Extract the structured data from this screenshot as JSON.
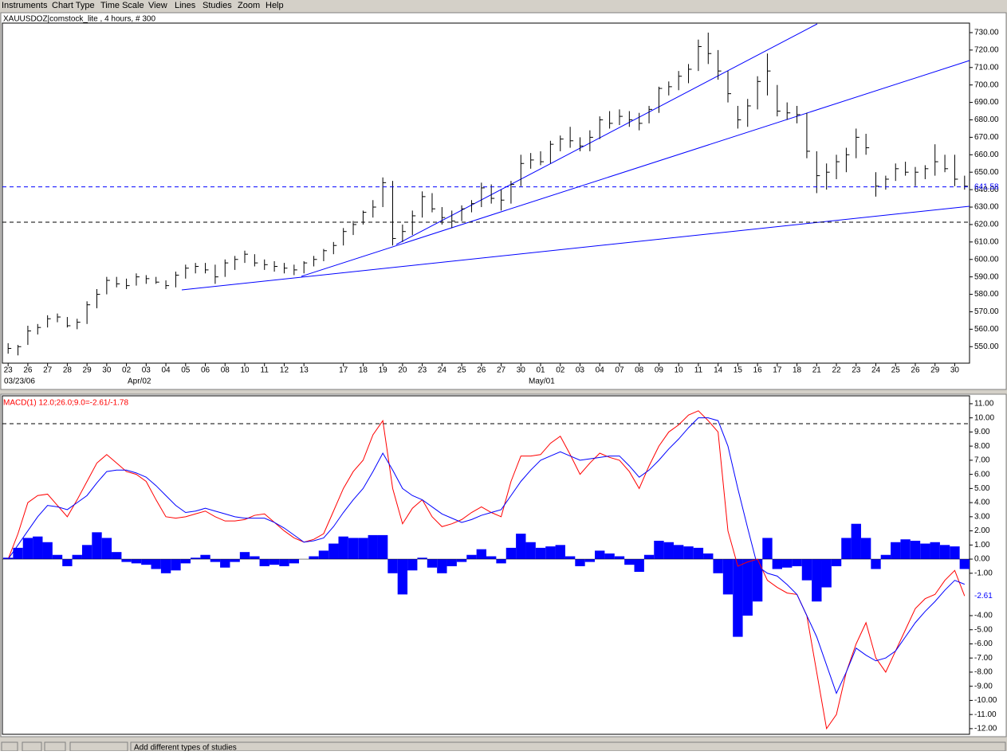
{
  "menu": [
    "Instruments",
    "Chart Type",
    "Time Scale",
    "View",
    "Lines",
    "Studies",
    "Zoom",
    "Help"
  ],
  "status_bar": "Add different types of studies",
  "chart_data": [
    {
      "type": "ohlc",
      "title": "XAUUSDOZ|comstock_lite , 4 hours, # 300",
      "color": "#000000",
      "categories": [
        "23",
        null,
        "26",
        null,
        "27",
        null,
        "28",
        null,
        "29",
        null,
        "30",
        null,
        "02",
        null,
        "03",
        null,
        "04",
        null,
        "05",
        null,
        "06",
        null,
        "08",
        null,
        "10",
        null,
        "11",
        null,
        "12",
        null,
        "13",
        null,
        null,
        null,
        "17",
        null,
        "18",
        null,
        "19",
        null,
        "20",
        null,
        "23",
        null,
        "24",
        null,
        "25",
        null,
        "26",
        null,
        "27",
        null,
        "30",
        null,
        "01",
        null,
        "02",
        null,
        "03",
        null,
        "04",
        null,
        "07",
        null,
        "08",
        null,
        "09",
        null,
        "10",
        null,
        "11",
        null,
        "14",
        null,
        "15",
        null,
        "16",
        null,
        "17",
        null,
        "18",
        null,
        "21",
        null,
        "22",
        null,
        "23",
        null,
        "24",
        null,
        "25",
        null,
        "26",
        null,
        "29",
        null,
        "30",
        null
      ],
      "period_labels": [
        "03/23/06",
        "Apr/02",
        "May/01"
      ],
      "high": [
        552,
        551,
        562,
        563,
        568,
        569,
        567,
        566,
        576,
        583,
        590,
        590,
        589,
        592,
        591,
        590,
        588,
        593,
        597,
        598,
        598,
        597,
        600,
        602,
        605,
        603,
        600,
        599,
        598,
        597,
        599,
        602,
        606,
        610,
        618,
        622,
        628,
        634,
        647,
        645,
        620,
        628,
        639,
        638,
        630,
        628,
        631,
        634,
        644,
        643,
        640,
        645,
        660,
        661,
        662,
        668,
        671,
        676,
        670,
        674,
        682,
        685,
        686,
        685,
        684,
        688,
        699,
        702,
        708,
        712,
        726,
        730,
        720,
        708,
        688,
        692,
        705,
        718,
        700,
        690,
        688,
        684,
        662,
        655,
        660,
        664,
        675,
        672,
        650,
        648,
        655,
        656,
        653,
        654,
        666,
        660,
        660,
        648
      ],
      "low": [
        546,
        545,
        551,
        557,
        561,
        564,
        561,
        560,
        563,
        572,
        580,
        584,
        583,
        585,
        586,
        586,
        583,
        584,
        589,
        592,
        592,
        586,
        590,
        594,
        598,
        596,
        594,
        593,
        592,
        591,
        592,
        596,
        599,
        603,
        608,
        614,
        620,
        624,
        630,
        608,
        610,
        614,
        624,
        627,
        620,
        618,
        622,
        627,
        630,
        632,
        628,
        632,
        642,
        652,
        654,
        655,
        662,
        664,
        662,
        662,
        669,
        675,
        677,
        676,
        674,
        678,
        684,
        694,
        697,
        701,
        708,
        712,
        703,
        690,
        675,
        676,
        686,
        694,
        682,
        680,
        678,
        658,
        638,
        640,
        646,
        650,
        658,
        660,
        636,
        640,
        645,
        648,
        642,
        646,
        648,
        650,
        642,
        640
      ],
      "close": [
        549,
        550,
        559,
        561,
        566,
        567,
        562,
        564,
        574,
        580,
        588,
        586,
        585,
        590,
        589,
        587,
        585,
        591,
        595,
        596,
        594,
        590,
        598,
        600,
        603,
        598,
        597,
        596,
        595,
        594,
        598,
        600,
        605,
        608,
        616,
        620,
        627,
        630,
        644,
        612,
        616,
        625,
        636,
        629,
        624,
        622,
        629,
        632,
        641,
        635,
        634,
        643,
        655,
        657,
        656,
        666,
        669,
        668,
        665,
        670,
        680,
        678,
        682,
        680,
        678,
        686,
        698,
        699,
        705,
        709,
        722,
        718,
        708,
        695,
        680,
        688,
        702,
        708,
        685,
        684,
        683,
        662,
        648,
        650,
        656,
        660,
        670,
        664,
        642,
        646,
        652,
        650,
        650,
        652,
        656,
        652,
        646,
        642
      ],
      "last_price": 641.58,
      "ylim": [
        541,
        735
      ],
      "yticks": [
        {
          "value": 550,
          "label": "550.00"
        },
        {
          "value": 560,
          "label": "560.00"
        },
        {
          "value": 570,
          "label": "570.00"
        },
        {
          "value": 580,
          "label": "580.00"
        },
        {
          "value": 590,
          "label": "590.00"
        },
        {
          "value": 600,
          "label": "600.00"
        },
        {
          "value": 610,
          "label": "610.00"
        },
        {
          "value": 620,
          "label": "620.00"
        },
        {
          "value": 630,
          "label": "630.00"
        },
        {
          "value": 640,
          "label": "640.00"
        },
        {
          "value": 650,
          "label": "650.00"
        },
        {
          "value": 660,
          "label": "660.00"
        },
        {
          "value": 670,
          "label": "670.00"
        },
        {
          "value": 680,
          "label": "680.00"
        },
        {
          "value": 690,
          "label": "690.00"
        },
        {
          "value": 700,
          "label": "700.00"
        },
        {
          "value": 710,
          "label": "710.00"
        },
        {
          "value": 720,
          "label": "720.00"
        },
        {
          "value": 730,
          "label": "730.00"
        }
      ]
    },
    {
      "type": "macd",
      "title": "MACD(1) 12.0;26.0;9.0=-2.61/-1.78",
      "series": [
        {
          "color": "#ff0000",
          "values": [
            0.0,
            1.8,
            4.0,
            4.5,
            4.6,
            3.8,
            3.0,
            4.2,
            5.5,
            6.8,
            7.4,
            6.8,
            6.2,
            6.0,
            5.5,
            4.2,
            3.0,
            2.9,
            3.0,
            3.2,
            3.4,
            3.0,
            2.7,
            2.7,
            2.8,
            3.1,
            3.2,
            2.6,
            2.0,
            1.5,
            1.2,
            1.4,
            1.8,
            3.4,
            5.0,
            6.2,
            7.0,
            8.8,
            9.8,
            5.0,
            2.5,
            3.6,
            4.2,
            3.0,
            2.3,
            2.5,
            2.8,
            3.3,
            3.7,
            3.3,
            3.0,
            5.5,
            7.3,
            7.3,
            7.4,
            8.2,
            8.7,
            7.4,
            6.0,
            6.8,
            7.5,
            7.2,
            7.0,
            6.2,
            5.0,
            6.6,
            8.0,
            9.0,
            9.5,
            10.2,
            10.5,
            9.8,
            9.0,
            2.0,
            -0.5,
            -0.2,
            0.0,
            -1.5,
            -2.0,
            -2.4,
            -2.5,
            -4.0,
            -8.0,
            -12.0,
            -11.0,
            -8.0,
            -6.0,
            -4.5,
            -7.0,
            -8.0,
            -6.5,
            -5.0,
            -3.5,
            -2.8,
            -2.5,
            -1.5,
            -0.8,
            -2.61
          ]
        },
        {
          "color": "#0000ff",
          "values": [
            0.0,
            1.0,
            2.0,
            3.0,
            3.8,
            3.7,
            3.5,
            4.0,
            4.5,
            5.4,
            6.2,
            6.3,
            6.3,
            6.1,
            5.8,
            5.2,
            4.5,
            3.8,
            3.3,
            3.4,
            3.6,
            3.4,
            3.2,
            3.0,
            2.9,
            2.9,
            2.9,
            2.6,
            2.2,
            1.7,
            1.2,
            1.3,
            1.5,
            2.3,
            3.3,
            4.2,
            5.0,
            6.2,
            7.5,
            6.3,
            5.0,
            4.5,
            4.2,
            3.7,
            3.2,
            2.9,
            2.6,
            2.8,
            3.1,
            3.3,
            3.5,
            4.5,
            5.5,
            6.3,
            7.0,
            7.3,
            7.6,
            7.3,
            7.0,
            7.1,
            7.2,
            7.3,
            7.3,
            6.6,
            5.8,
            6.3,
            7.0,
            7.8,
            8.5,
            9.3,
            10.0,
            10.0,
            9.8,
            8.0,
            5.0,
            2.2,
            -0.5,
            -1.0,
            -1.2,
            -1.8,
            -2.5,
            -4.0,
            -5.5,
            -7.5,
            -9.5,
            -8.0,
            -6.3,
            -6.8,
            -7.2,
            -7.0,
            -6.5,
            -5.5,
            -4.5,
            -3.7,
            -3.0,
            -2.2,
            -1.5,
            -1.78
          ]
        }
      ],
      "histogram": {
        "color": "#0000ff",
        "values": [
          0.1,
          0.8,
          1.5,
          1.6,
          1.2,
          0.3,
          -0.5,
          0.3,
          1.0,
          1.9,
          1.5,
          0.5,
          -0.2,
          -0.3,
          -0.4,
          -0.7,
          -1.0,
          -0.8,
          -0.3,
          0.1,
          0.3,
          -0.2,
          -0.6,
          -0.2,
          0.5,
          0.2,
          -0.5,
          -0.4,
          -0.5,
          -0.3,
          0.0,
          0.2,
          0.6,
          1.1,
          1.6,
          1.5,
          1.5,
          1.7,
          1.7,
          -1.0,
          -2.5,
          -0.8,
          0.1,
          -0.6,
          -1.0,
          -0.5,
          -0.2,
          0.3,
          0.7,
          0.2,
          -0.3,
          0.8,
          1.8,
          1.2,
          0.8,
          0.9,
          1.0,
          0.2,
          -0.5,
          -0.2,
          0.6,
          0.4,
          0.2,
          -0.4,
          -0.9,
          0.3,
          1.3,
          1.2,
          1.0,
          0.9,
          0.8,
          0.4,
          -1.0,
          -2.5,
          -5.5,
          -4.0,
          -3.0,
          1.5,
          -0.7,
          -0.6,
          -0.5,
          -1.5,
          -3.0,
          -2.0,
          -0.5,
          1.5,
          2.5,
          1.5,
          -0.7,
          0.3,
          1.2,
          1.4,
          1.3,
          1.1,
          1.2,
          1.0,
          0.9,
          -0.7
        ]
      },
      "current_value": -2.61,
      "ylim": [
        -12.4,
        11.56
      ],
      "yticks": [
        {
          "value": -12,
          "label": "-12.00"
        },
        {
          "value": -11,
          "label": "-11.00"
        },
        {
          "value": -10,
          "label": "-10.00"
        },
        {
          "value": -9,
          "label": "-9.00"
        },
        {
          "value": -8,
          "label": "-8.00"
        },
        {
          "value": -7,
          "label": "-7.00"
        },
        {
          "value": -6,
          "label": "-6.00"
        },
        {
          "value": -5,
          "label": "-5.00"
        },
        {
          "value": -4,
          "label": "-4.00"
        },
        {
          "value": -1,
          "label": "-1.00"
        },
        {
          "value": 0,
          "label": "0.00"
        },
        {
          "value": 1,
          "label": "1.00"
        },
        {
          "value": 2,
          "label": "2.00"
        },
        {
          "value": 3,
          "label": "3.00"
        },
        {
          "value": 4,
          "label": "4.00"
        },
        {
          "value": 5,
          "label": "5.00"
        },
        {
          "value": 6,
          "label": "6.00"
        },
        {
          "value": 7,
          "label": "7.00"
        },
        {
          "value": 8,
          "label": "8.00"
        },
        {
          "value": 9,
          "label": "9.00"
        },
        {
          "value": 10,
          "label": "10.00"
        },
        {
          "value": 11,
          "label": "11.00"
        }
      ]
    }
  ]
}
